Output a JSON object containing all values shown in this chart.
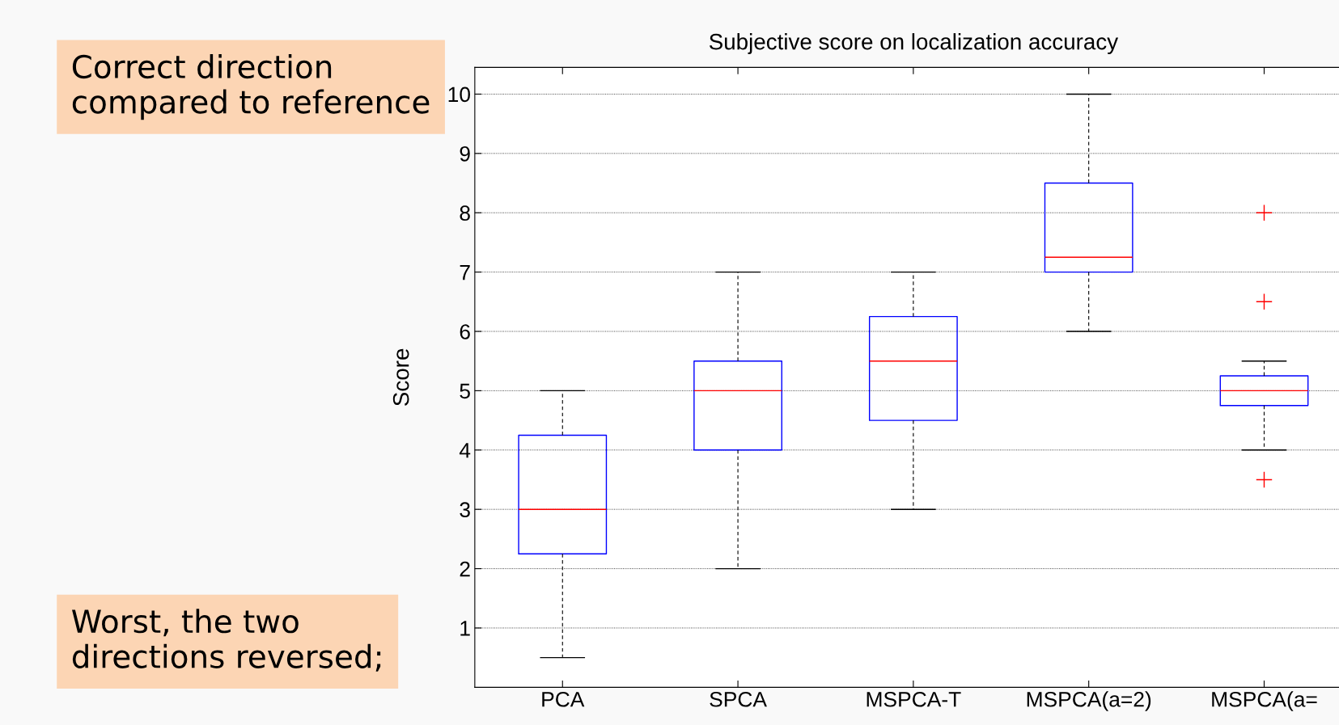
{
  "chart_data": {
    "type": "box",
    "title": "Subjective score on localization accuracy",
    "ylabel": "Score",
    "categories": [
      "PCA",
      "SPCA",
      "MSPCA-T",
      "MSPCA(a=2)",
      "MSPCA(a="
    ],
    "boxes": [
      {
        "low": 0.5,
        "q1": 2.25,
        "median": 3,
        "q3": 4.25,
        "high": 5
      },
      {
        "low": 2,
        "q1": 4,
        "median": 5,
        "q3": 5.5,
        "high": 7
      },
      {
        "low": 3,
        "q1": 4.5,
        "median": 5.5,
        "q3": 6.25,
        "high": 7
      },
      {
        "low": 6,
        "q1": 7,
        "median": 7.25,
        "q3": 8.5,
        "high": 10
      },
      {
        "low": 4,
        "q1": 4.75,
        "median": 5,
        "q3": 5.25,
        "high": 5.5,
        "outliers": [
          8,
          6.5,
          3.5
        ]
      }
    ],
    "color": "#0000ff",
    "ylim": [
      0,
      10.45
    ],
    "yticks": [
      1,
      2,
      3,
      4,
      5,
      6,
      7,
      8,
      9,
      10
    ],
    "grid": "y",
    "annotations": [
      "Correct direction\ncompared to reference",
      "Worst, the two\ndirections reversed;"
    ]
  }
}
